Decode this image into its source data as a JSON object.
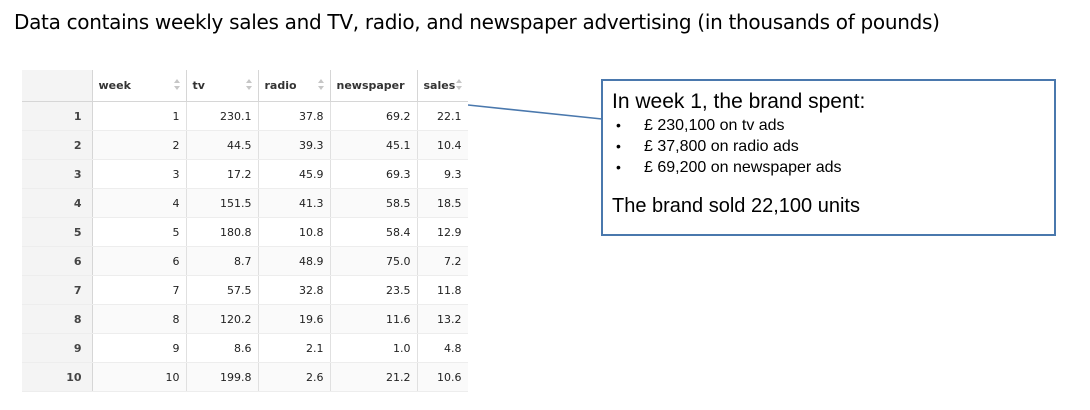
{
  "heading": "Data contains weekly sales and TV, radio, and newspaper advertising (in thousands of pounds)",
  "table": {
    "columns": [
      "week",
      "tv",
      "radio",
      "newspaper",
      "sales"
    ],
    "rows": [
      {
        "row": "1",
        "week": "1",
        "tv": "230.1",
        "radio": "37.8",
        "newspaper": "69.2",
        "sales": "22.1"
      },
      {
        "row": "2",
        "week": "2",
        "tv": "44.5",
        "radio": "39.3",
        "newspaper": "45.1",
        "sales": "10.4"
      },
      {
        "row": "3",
        "week": "3",
        "tv": "17.2",
        "radio": "45.9",
        "newspaper": "69.3",
        "sales": "9.3"
      },
      {
        "row": "4",
        "week": "4",
        "tv": "151.5",
        "radio": "41.3",
        "newspaper": "58.5",
        "sales": "18.5"
      },
      {
        "row": "5",
        "week": "5",
        "tv": "180.8",
        "radio": "10.8",
        "newspaper": "58.4",
        "sales": "12.9"
      },
      {
        "row": "6",
        "week": "6",
        "tv": "8.7",
        "radio": "48.9",
        "newspaper": "75.0",
        "sales": "7.2"
      },
      {
        "row": "7",
        "week": "7",
        "tv": "57.5",
        "radio": "32.8",
        "newspaper": "23.5",
        "sales": "11.8"
      },
      {
        "row": "8",
        "week": "8",
        "tv": "120.2",
        "radio": "19.6",
        "newspaper": "11.6",
        "sales": "13.2"
      },
      {
        "row": "9",
        "week": "9",
        "tv": "8.6",
        "radio": "2.1",
        "newspaper": "1.0",
        "sales": "4.8"
      },
      {
        "row": "10",
        "week": "10",
        "tv": "199.8",
        "radio": "2.6",
        "newspaper": "21.2",
        "sales": "10.6"
      }
    ]
  },
  "callout": {
    "title": "In week 1, the brand spent:",
    "items": [
      "£ 230,100 on tv ads",
      "£ 37,800 on radio ads",
      "£ 69,200 on newspaper ads"
    ],
    "summary": "The brand sold 22,100 units",
    "bullet": "•"
  },
  "colors": {
    "callout_border": "#4a78ad",
    "row_header_bg": "#f4f4f4",
    "sort_icon": "#c6c6c6"
  }
}
